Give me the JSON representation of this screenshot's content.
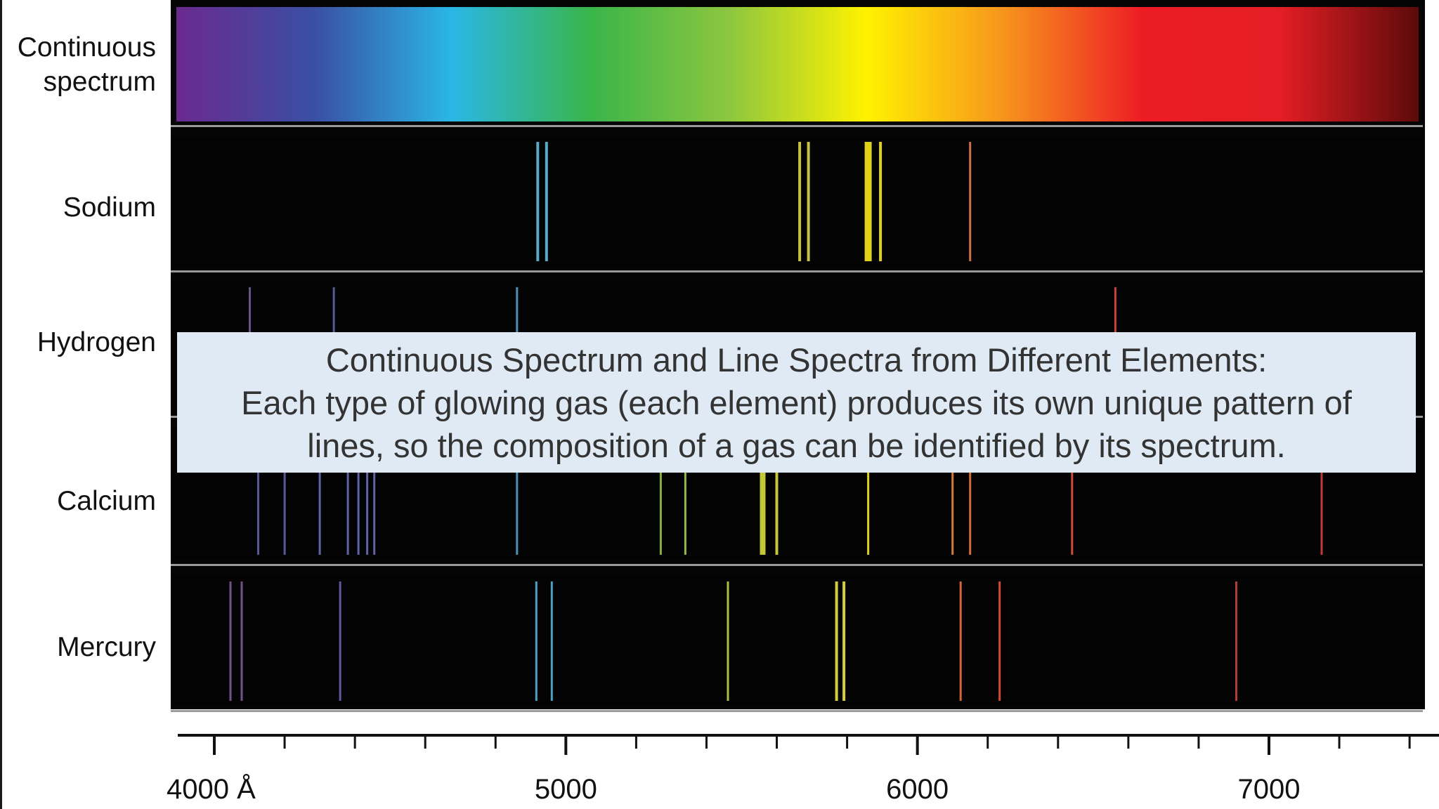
{
  "chart_data": {
    "type": "line spectra",
    "x_range": [
      3900,
      7450
    ],
    "rows": [
      {
        "label": "Continuous\nspectrum",
        "kind": "continuous",
        "gradient": [
          "#6a2a8f",
          "#3a4fa3",
          "#2ab7e6",
          "#39b54a",
          "#8cc63f",
          "#fff200",
          "#f7941d",
          "#ed1c24",
          "#e31e24",
          "#5c0a0a"
        ]
      },
      {
        "label": "Sodium",
        "kind": "lines",
        "lines": [
          {
            "x": 4920,
            "color": "#5fb8d8",
            "w": 4
          },
          {
            "x": 4945,
            "color": "#5fb8d8",
            "w": 4
          },
          {
            "x": 5665,
            "color": "#d8d24a",
            "w": 4
          },
          {
            "x": 5690,
            "color": "#d8d24a",
            "w": 4
          },
          {
            "x": 5860,
            "color": "#f2e21e",
            "w": 10
          },
          {
            "x": 5895,
            "color": "#f2e21e",
            "w": 4
          },
          {
            "x": 6150,
            "color": "#e07a4a",
            "w": 3
          }
        ]
      },
      {
        "label": "Hydrogen",
        "kind": "lines",
        "lines": [
          {
            "x": 4101,
            "color": "#6f5a96",
            "w": 3
          },
          {
            "x": 4340,
            "color": "#5a63a8",
            "w": 3
          },
          {
            "x": 4861,
            "color": "#4f9cc6",
            "w": 3
          },
          {
            "x": 6563,
            "color": "#e0453a",
            "w": 3
          }
        ]
      },
      {
        "label": "Calcium",
        "kind": "lines",
        "lines": [
          {
            "x": 4125,
            "color": "#5c5fa6",
            "w": 3
          },
          {
            "x": 4200,
            "color": "#5c5fa6",
            "w": 3
          },
          {
            "x": 4300,
            "color": "#6a6ab5",
            "w": 3
          },
          {
            "x": 4380,
            "color": "#6a6ab5",
            "w": 3
          },
          {
            "x": 4410,
            "color": "#6a6ab5",
            "w": 3
          },
          {
            "x": 4435,
            "color": "#6a6ab5",
            "w": 3
          },
          {
            "x": 4455,
            "color": "#6a6ab5",
            "w": 3
          },
          {
            "x": 4861,
            "color": "#4f9cc6",
            "w": 3
          },
          {
            "x": 5270,
            "color": "#8fbf4a",
            "w": 3
          },
          {
            "x": 5340,
            "color": "#9fc84a",
            "w": 3
          },
          {
            "x": 5560,
            "color": "#d5d83c",
            "w": 8
          },
          {
            "x": 5600,
            "color": "#d5d83c",
            "w": 4
          },
          {
            "x": 5860,
            "color": "#f2e21e",
            "w": 3
          },
          {
            "x": 6100,
            "color": "#e8853a",
            "w": 3
          },
          {
            "x": 6150,
            "color": "#e8753a",
            "w": 3
          },
          {
            "x": 6440,
            "color": "#e0553a",
            "w": 3
          },
          {
            "x": 7150,
            "color": "#d0403a",
            "w": 3
          }
        ]
      },
      {
        "label": "Mercury",
        "kind": "lines",
        "lines": [
          {
            "x": 4046,
            "color": "#7a5a96",
            "w": 3
          },
          {
            "x": 4078,
            "color": "#7a5a96",
            "w": 3
          },
          {
            "x": 4358,
            "color": "#6a5fa8",
            "w": 3
          },
          {
            "x": 4916,
            "color": "#4fb0d6",
            "w": 3
          },
          {
            "x": 4960,
            "color": "#4fb0d6",
            "w": 3
          },
          {
            "x": 5461,
            "color": "#b8d04a",
            "w": 3
          },
          {
            "x": 5770,
            "color": "#e8e03c",
            "w": 4
          },
          {
            "x": 5791,
            "color": "#e8e03c",
            "w": 4
          },
          {
            "x": 6123,
            "color": "#e8703a",
            "w": 3
          },
          {
            "x": 6234,
            "color": "#e8503a",
            "w": 3
          },
          {
            "x": 6907,
            "color": "#c8403a",
            "w": 3
          }
        ]
      }
    ],
    "axis": {
      "major_ticks": [
        4000,
        5000,
        6000,
        7000
      ],
      "tick_labels": [
        "4000 Å",
        "5000",
        "6000",
        "7000"
      ],
      "minor_step": 200
    }
  },
  "caption": {
    "line1": "Continuous Spectrum and Line Spectra from Different Elements:",
    "line2": "Each type of glowing gas (each element) produces its own unique pattern of",
    "line3": "lines, so the composition of a gas can be identified by its spectrum."
  }
}
